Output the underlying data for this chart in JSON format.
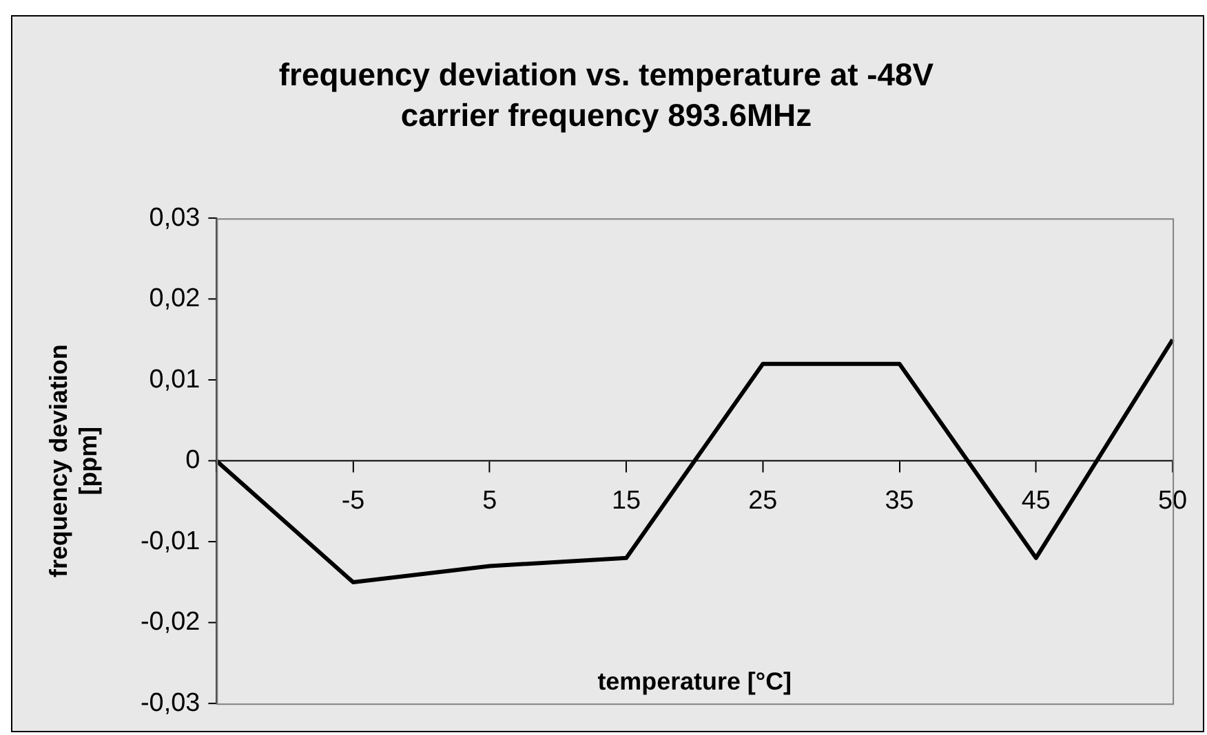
{
  "chart_data": {
    "type": "line",
    "title": "frequency deviation vs. temperature at -48V",
    "subtitle": "carrier frequency 893.6MHz",
    "xlabel": "temperature [°C]",
    "ylabel": "frequency deviation\n[ppm]",
    "categories": [
      null,
      "-5",
      "5",
      "15",
      "25",
      "35",
      "45",
      "50"
    ],
    "series": [
      {
        "color": "#000000",
        "values": [
          0,
          -0.015,
          -0.013,
          -0.012,
          0.012,
          0.012,
          -0.012,
          0.015
        ]
      }
    ],
    "ylim": [
      -0.03,
      0.03
    ],
    "yticks": [
      {
        "value": -0.03,
        "label": "-0,03"
      },
      {
        "value": -0.02,
        "label": "-0,02"
      },
      {
        "value": -0.01,
        "label": "-0,01"
      },
      {
        "value": 0,
        "label": "0"
      },
      {
        "value": 0.01,
        "label": "0,01"
      },
      {
        "value": 0.02,
        "label": "0,02"
      },
      {
        "value": 0.03,
        "label": "0,03"
      }
    ],
    "grid": false,
    "legend": false,
    "marker": "none",
    "line_style": "solid"
  }
}
